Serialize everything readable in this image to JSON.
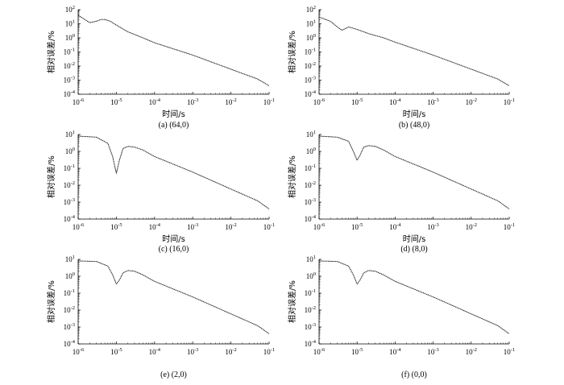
{
  "chart_data": [
    {
      "type": "line",
      "caption": "(a) (64,0)",
      "xlabel": "时间/s",
      "ylabel": "相对误差/%",
      "xscale": "log",
      "yscale": "log",
      "xlim": [
        1e-06,
        0.1
      ],
      "ylim": [
        0.0001,
        100.0
      ],
      "xticks": [
        "10^-6",
        "10^-5",
        "10^-4",
        "10^-3",
        "10^-2",
        "10^-1"
      ],
      "yticks": [
        "10^-4",
        "10^-3",
        "10^-2",
        "10^-1",
        "10^0",
        "10^1",
        "10^2"
      ],
      "series": [
        {
          "x": [
            1e-06,
            1.5e-06,
            2e-06,
            3e-06,
            4e-06,
            5e-06,
            7e-06,
            1e-05,
            2e-05,
            5e-05,
            0.0001,
            0.001,
            0.01,
            0.05,
            0.1
          ],
          "y": [
            40,
            20,
            12,
            15,
            20,
            20,
            15,
            8,
            2.7,
            1.0,
            0.45,
            0.06,
            0.006,
            0.0012,
            0.0004
          ]
        }
      ]
    },
    {
      "type": "line",
      "caption": "(b) (48,0)",
      "xlabel": "时间/s",
      "ylabel": "相对误差/%",
      "xscale": "log",
      "yscale": "log",
      "xlim": [
        1e-06,
        0.1
      ],
      "ylim": [
        0.0001,
        100.0
      ],
      "xticks": [
        "10^-6",
        "10^-5",
        "10^-4",
        "10^-3",
        "10^-2",
        "10^-1"
      ],
      "yticks": [
        "10^-4",
        "10^-3",
        "10^-2",
        "10^-1",
        "10^0",
        "10^1",
        "10^2"
      ],
      "series": [
        {
          "x": [
            1e-06,
            2e-06,
            3e-06,
            4e-06,
            6e-06,
            1e-05,
            2e-05,
            5e-05,
            0.0001,
            0.001,
            0.01,
            0.05,
            0.1
          ],
          "y": [
            30,
            15,
            6,
            3.5,
            6,
            4,
            2.0,
            1.0,
            0.5,
            0.06,
            0.006,
            0.0012,
            0.0004
          ]
        }
      ]
    },
    {
      "type": "line",
      "caption": "(c) (16,0)",
      "xlabel": "时间/s",
      "ylabel": "相对误差/%",
      "xscale": "log",
      "yscale": "log",
      "xlim": [
        1e-06,
        0.1
      ],
      "ylim": [
        0.0001,
        10.0
      ],
      "xticks": [
        "10^-6",
        "10^-5",
        "10^-4",
        "10^-3",
        "10^-2",
        "10^-1"
      ],
      "yticks": [
        "10^-4",
        "10^-3",
        "10^-2",
        "10^-1",
        "10^0",
        "10^1"
      ],
      "series": [
        {
          "x": [
            1e-06,
            3e-06,
            6e-06,
            8e-06,
            1e-05,
            1.2e-05,
            1.5e-05,
            2e-05,
            3e-05,
            5e-05,
            0.0001,
            0.001,
            0.01,
            0.05,
            0.1
          ],
          "y": [
            8,
            7,
            3,
            0.5,
            0.05,
            0.3,
            1.5,
            2.0,
            1.8,
            1.2,
            0.5,
            0.06,
            0.006,
            0.0012,
            0.0004
          ]
        }
      ]
    },
    {
      "type": "line",
      "caption": "(d) (8,0)",
      "xlabel": "时间/s",
      "ylabel": "相对误差/%",
      "xscale": "log",
      "yscale": "log",
      "xlim": [
        1e-06,
        0.1
      ],
      "ylim": [
        0.0001,
        10.0
      ],
      "xticks": [
        "10^-6",
        "10^-5",
        "10^-4",
        "10^-3",
        "10^-2",
        "10^-1"
      ],
      "yticks": [
        "10^-4",
        "10^-3",
        "10^-2",
        "10^-1",
        "10^0",
        "10^1"
      ],
      "series": [
        {
          "x": [
            1e-06,
            3e-06,
            6e-06,
            8e-06,
            1e-05,
            1.2e-05,
            1.5e-05,
            2e-05,
            3e-05,
            5e-05,
            0.0001,
            0.001,
            0.01,
            0.05,
            0.1
          ],
          "y": [
            8,
            7,
            4,
            1.0,
            0.3,
            0.6,
            1.8,
            2.2,
            2.0,
            1.2,
            0.5,
            0.06,
            0.006,
            0.0012,
            0.0004
          ]
        }
      ]
    },
    {
      "type": "line",
      "caption": "(e) (2,0)",
      "xlabel": "",
      "ylabel": "相对误差/%",
      "xscale": "log",
      "yscale": "log",
      "xlim": [
        1e-06,
        0.1
      ],
      "ylim": [
        0.0001,
        10.0
      ],
      "xticks": [
        "10^-6",
        "10^-5",
        "10^-4",
        "10^-3",
        "10^-2",
        "10^-1"
      ],
      "yticks": [
        "10^-4",
        "10^-3",
        "10^-2",
        "10^-1",
        "10^0",
        "10^1"
      ],
      "series": [
        {
          "x": [
            1e-06,
            3e-06,
            6e-06,
            8e-06,
            1e-05,
            1.2e-05,
            1.5e-05,
            2e-05,
            3e-05,
            5e-05,
            0.0001,
            0.001,
            0.01,
            0.05,
            0.1
          ],
          "y": [
            8,
            7.5,
            4,
            1.2,
            0.35,
            0.6,
            1.6,
            2.2,
            2.0,
            1.2,
            0.5,
            0.06,
            0.006,
            0.0012,
            0.0004
          ]
        }
      ]
    },
    {
      "type": "line",
      "caption": "(f) (0,0)",
      "xlabel": "",
      "ylabel": "相对误差/%",
      "xscale": "log",
      "yscale": "log",
      "xlim": [
        1e-06,
        0.1
      ],
      "ylim": [
        0.0001,
        10.0
      ],
      "xticks": [
        "10^-6",
        "10^-5",
        "10^-4",
        "10^-3",
        "10^-2",
        "10^-1"
      ],
      "yticks": [
        "10^-4",
        "10^-3",
        "10^-2",
        "10^-1",
        "10^0",
        "10^1"
      ],
      "series": [
        {
          "x": [
            1e-06,
            3e-06,
            6e-06,
            8e-06,
            1e-05,
            1.2e-05,
            1.5e-05,
            2e-05,
            3e-05,
            5e-05,
            0.0001,
            0.001,
            0.01,
            0.05,
            0.1
          ],
          "y": [
            8,
            7.5,
            4,
            1.2,
            0.35,
            0.6,
            1.6,
            2.2,
            2.0,
            1.2,
            0.5,
            0.06,
            0.006,
            0.0012,
            0.0004
          ]
        }
      ]
    }
  ]
}
